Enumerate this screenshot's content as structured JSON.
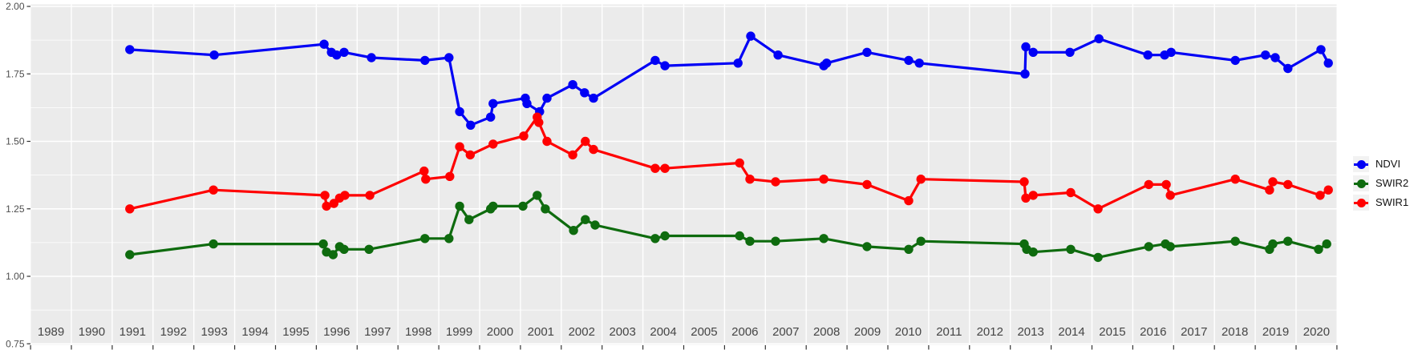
{
  "style": {
    "page_bg": "#FFFFFF",
    "panel_bg": "#EBEBEB",
    "grid_color": "#FFFFFF",
    "axis_tick_color": "#333333",
    "x_label_color": "#454545",
    "y_label_color": "#4D4D4D",
    "ndvi_color": "#0000F5",
    "swir2_color": "#0E6B0E",
    "swir1_color": "#FF0000",
    "legend_key_bg": "#F2F2F2"
  },
  "chart_data": {
    "type": "line",
    "title": "",
    "xlabel": "",
    "ylabel": "",
    "grid": "on",
    "legend_position": "right-center",
    "x_axis": {
      "domain": [
        1989.0,
        2021.0
      ],
      "tick_boundaries": [
        1989,
        1990,
        1991,
        1992,
        1993,
        1994,
        1995,
        1996,
        1997,
        1998,
        1999,
        2000,
        2001,
        2002,
        2003,
        2004,
        2005,
        2006,
        2007,
        2008,
        2009,
        2010,
        2011,
        2012,
        2013,
        2014,
        2015,
        2016,
        2017,
        2018,
        2019,
        2020,
        2021
      ],
      "bin_labels": [
        "1989",
        "1990",
        "1991",
        "1992",
        "1993",
        "1994",
        "1995",
        "1996",
        "1997",
        "1998",
        "1999",
        "2000",
        "2001",
        "2002",
        "2003",
        "2004",
        "2005",
        "2006",
        "2007",
        "2008",
        "2009",
        "2010",
        "2011",
        "2012",
        "2013",
        "2014",
        "2015",
        "2016",
        "2017",
        "2018",
        "2019",
        "2020"
      ]
    },
    "y_axis": {
      "domain": [
        0.74,
        2.01
      ],
      "major_ticks": [
        0.75,
        1.0,
        1.25,
        1.5,
        1.75,
        2.0
      ],
      "major_tick_labels": [
        "0.75",
        "1.00",
        "1.25",
        "1.50",
        "1.75",
        "2.00"
      ],
      "minor_ticks": [
        0.875,
        1.125,
        1.375,
        1.625,
        1.875
      ]
    },
    "legend": [
      {
        "label": "NDVI",
        "series": "NDVI",
        "color_key": "ndvi_color"
      },
      {
        "label": "SWIR2",
        "series": "SWIR2",
        "color_key": "swir2_color"
      },
      {
        "label": "SWIR1",
        "series": "SWIR1",
        "color_key": "swir1_color"
      }
    ],
    "series": [
      {
        "name": "NDVI",
        "color_key": "ndvi_color",
        "points": [
          [
            1991.43,
            1.84
          ],
          [
            1993.5,
            1.82
          ],
          [
            1996.19,
            1.86
          ],
          [
            1996.37,
            1.83
          ],
          [
            1996.5,
            1.82
          ],
          [
            1996.68,
            1.83
          ],
          [
            1997.35,
            1.81
          ],
          [
            1998.66,
            1.8
          ],
          [
            1999.25,
            1.81
          ],
          [
            1999.51,
            1.61
          ],
          [
            1999.78,
            1.56
          ],
          [
            2000.27,
            1.59
          ],
          [
            2000.33,
            1.64
          ],
          [
            2001.12,
            1.66
          ],
          [
            2001.16,
            1.64
          ],
          [
            2001.47,
            1.61
          ],
          [
            2001.65,
            1.66
          ],
          [
            2002.28,
            1.71
          ],
          [
            2002.57,
            1.68
          ],
          [
            2002.79,
            1.66
          ],
          [
            2004.3,
            1.8
          ],
          [
            2004.54,
            1.78
          ],
          [
            2006.33,
            1.79
          ],
          [
            2006.64,
            1.89
          ],
          [
            2007.31,
            1.82
          ],
          [
            2008.43,
            1.78
          ],
          [
            2008.5,
            1.79
          ],
          [
            2009.49,
            1.83
          ],
          [
            2010.51,
            1.8
          ],
          [
            2010.77,
            1.79
          ],
          [
            2013.36,
            1.75
          ],
          [
            2013.38,
            1.85
          ],
          [
            2013.56,
            1.83
          ],
          [
            2014.46,
            1.83
          ],
          [
            2015.17,
            1.88
          ],
          [
            2016.37,
            1.82
          ],
          [
            2016.78,
            1.82
          ],
          [
            2016.94,
            1.83
          ],
          [
            2018.51,
            1.8
          ],
          [
            2019.25,
            1.82
          ],
          [
            2019.49,
            1.81
          ],
          [
            2019.8,
            1.77
          ],
          [
            2020.61,
            1.84
          ],
          [
            2020.79,
            1.79
          ]
        ]
      },
      {
        "name": "SWIR2",
        "color_key": "swir2_color",
        "points": [
          [
            1991.43,
            1.08
          ],
          [
            1993.48,
            1.12
          ],
          [
            1996.17,
            1.12
          ],
          [
            1996.25,
            1.09
          ],
          [
            1996.41,
            1.08
          ],
          [
            1996.57,
            1.11
          ],
          [
            1996.68,
            1.1
          ],
          [
            1997.29,
            1.1
          ],
          [
            1998.66,
            1.14
          ],
          [
            1999.25,
            1.14
          ],
          [
            1999.51,
            1.26
          ],
          [
            1999.74,
            1.21
          ],
          [
            2000.27,
            1.25
          ],
          [
            2000.33,
            1.26
          ],
          [
            2001.06,
            1.26
          ],
          [
            2001.41,
            1.3
          ],
          [
            2001.61,
            1.25
          ],
          [
            2002.3,
            1.17
          ],
          [
            2002.59,
            1.21
          ],
          [
            2002.83,
            1.19
          ],
          [
            2004.3,
            1.14
          ],
          [
            2004.54,
            1.15
          ],
          [
            2006.37,
            1.15
          ],
          [
            2006.62,
            1.13
          ],
          [
            2007.25,
            1.13
          ],
          [
            2008.43,
            1.14
          ],
          [
            2009.49,
            1.11
          ],
          [
            2010.51,
            1.1
          ],
          [
            2010.81,
            1.13
          ],
          [
            2013.34,
            1.12
          ],
          [
            2013.4,
            1.1
          ],
          [
            2013.56,
            1.09
          ],
          [
            2014.48,
            1.1
          ],
          [
            2015.15,
            1.07
          ],
          [
            2016.39,
            1.11
          ],
          [
            2016.8,
            1.12
          ],
          [
            2016.92,
            1.11
          ],
          [
            2018.51,
            1.13
          ],
          [
            2019.35,
            1.1
          ],
          [
            2019.43,
            1.12
          ],
          [
            2019.8,
            1.13
          ],
          [
            2020.55,
            1.1
          ],
          [
            2020.75,
            1.12
          ]
        ]
      },
      {
        "name": "SWIR1",
        "color_key": "swir1_color",
        "points": [
          [
            1991.43,
            1.25
          ],
          [
            1993.48,
            1.32
          ],
          [
            1996.21,
            1.3
          ],
          [
            1996.25,
            1.26
          ],
          [
            1996.43,
            1.27
          ],
          [
            1996.57,
            1.29
          ],
          [
            1996.7,
            1.3
          ],
          [
            1997.31,
            1.3
          ],
          [
            1998.64,
            1.39
          ],
          [
            1998.68,
            1.36
          ],
          [
            1999.27,
            1.37
          ],
          [
            1999.51,
            1.48
          ],
          [
            1999.77,
            1.45
          ],
          [
            2000.33,
            1.49
          ],
          [
            2001.08,
            1.52
          ],
          [
            2001.41,
            1.59
          ],
          [
            2001.45,
            1.57
          ],
          [
            2001.65,
            1.5
          ],
          [
            2002.28,
            1.45
          ],
          [
            2002.59,
            1.5
          ],
          [
            2002.79,
            1.47
          ],
          [
            2004.3,
            1.4
          ],
          [
            2004.54,
            1.4
          ],
          [
            2006.37,
            1.42
          ],
          [
            2006.62,
            1.36
          ],
          [
            2007.25,
            1.35
          ],
          [
            2008.43,
            1.36
          ],
          [
            2009.49,
            1.34
          ],
          [
            2010.51,
            1.28
          ],
          [
            2010.81,
            1.36
          ],
          [
            2013.34,
            1.35
          ],
          [
            2013.38,
            1.29
          ],
          [
            2013.56,
            1.3
          ],
          [
            2014.48,
            1.31
          ],
          [
            2015.15,
            1.25
          ],
          [
            2016.39,
            1.34
          ],
          [
            2016.82,
            1.34
          ],
          [
            2016.92,
            1.3
          ],
          [
            2018.51,
            1.36
          ],
          [
            2019.35,
            1.32
          ],
          [
            2019.43,
            1.35
          ],
          [
            2019.8,
            1.34
          ],
          [
            2020.59,
            1.3
          ],
          [
            2020.79,
            1.32
          ]
        ]
      }
    ]
  }
}
